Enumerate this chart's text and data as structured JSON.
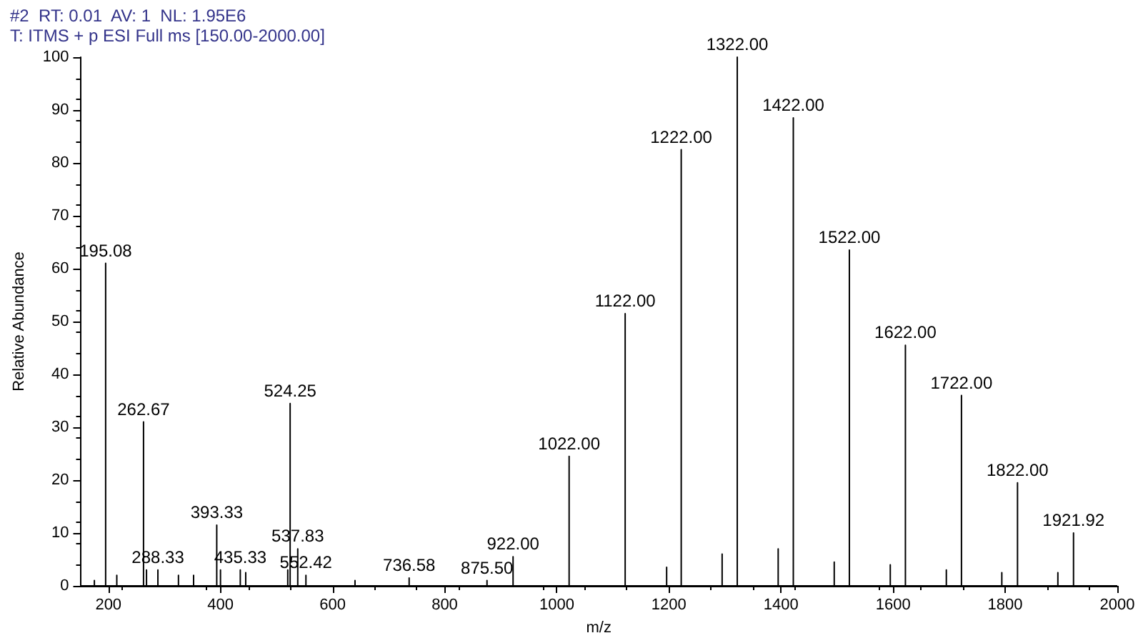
{
  "chart_data": {
    "type": "line",
    "title": "#2  RT: 0.01  AV: 1  NL: 1.95E6",
    "subtitle": "T: ITMS + p ESI Full ms [150.00-2000.00]",
    "xlabel": "m/z",
    "ylabel": "Relative Abundance",
    "xlim": [
      150,
      2000
    ],
    "xticks": [
      200,
      400,
      600,
      800,
      1000,
      1200,
      1400,
      1600,
      1800,
      2000
    ],
    "ylim": [
      0,
      100
    ],
    "yticks": [
      0,
      10,
      20,
      30,
      40,
      50,
      60,
      70,
      80,
      90,
      100
    ],
    "grid": false,
    "marker": "none",
    "line_style": "solid",
    "series": [
      {
        "color": "#000000",
        "x": [
          150,
          175,
          175,
          175,
          195.08,
          195.08,
          195.08,
          215,
          215,
          215,
          262.67,
          262.67,
          262.67,
          268,
          268,
          268,
          288.33,
          288.33,
          288.33,
          325,
          325,
          325,
          352,
          352,
          352,
          393.33,
          393.33,
          393.33,
          400,
          400,
          400,
          435.33,
          435.33,
          435.33,
          445,
          445,
          445,
          520,
          520,
          520,
          524.25,
          524.25,
          524.25,
          537.83,
          537.83,
          537.83,
          552.42,
          552.42,
          552.42,
          640,
          640,
          640,
          736.58,
          736.58,
          736.58,
          875.5,
          875.5,
          875.5,
          922,
          922,
          922,
          1022,
          1022,
          1022,
          1122,
          1122,
          1122,
          1196,
          1196,
          1196,
          1222,
          1222,
          1222,
          1295,
          1295,
          1295,
          1322,
          1322,
          1322,
          1395,
          1395,
          1395,
          1422,
          1422,
          1422,
          1495,
          1495,
          1495,
          1522,
          1522,
          1522,
          1595,
          1595,
          1595,
          1622,
          1622,
          1622,
          1695,
          1695,
          1695,
          1722,
          1722,
          1722,
          1794,
          1794,
          1794,
          1822,
          1822,
          1822,
          1894,
          1894,
          1894,
          1921.92,
          1921.92,
          1921.92,
          2000
        ],
        "values": [
          0,
          0,
          1,
          0,
          0,
          61,
          0,
          0,
          2,
          0,
          0,
          31,
          0,
          0,
          3,
          0,
          0,
          3,
          0,
          0,
          2,
          0,
          0,
          2,
          0,
          0,
          11.5,
          0,
          0,
          3,
          0,
          0,
          3,
          0,
          0,
          2.5,
          0,
          0,
          3,
          0,
          0,
          34.5,
          0,
          0,
          7,
          0,
          0,
          2,
          0,
          0,
          1,
          0,
          0,
          1.5,
          0,
          0,
          1,
          0,
          0,
          5.5,
          0,
          0,
          24.5,
          0,
          0,
          51.5,
          0,
          0,
          3.5,
          0,
          0,
          82.5,
          0,
          0,
          6,
          0,
          0,
          100,
          0,
          0,
          7,
          0,
          0,
          88.5,
          0,
          0,
          4.5,
          0,
          0,
          63.5,
          0,
          0,
          4,
          0,
          0,
          45.5,
          0,
          0,
          3,
          0,
          0,
          36,
          0,
          0,
          2.5,
          0,
          0,
          19.5,
          0,
          0,
          2.5,
          0,
          0,
          10,
          0,
          0
        ]
      }
    ],
    "annotations": [
      {
        "text": "195.08",
        "x": 195.08,
        "y": 61
      },
      {
        "text": "262.67",
        "x": 262.67,
        "y": 31
      },
      {
        "text": "288.33",
        "x": 288.33,
        "y": 3
      },
      {
        "text": "393.33",
        "x": 393.33,
        "y": 11.5
      },
      {
        "text": "435.33",
        "x": 435.33,
        "y": 3
      },
      {
        "text": "524.25",
        "x": 524.25,
        "y": 34.5
      },
      {
        "text": "537.83",
        "x": 537.83,
        "y": 7
      },
      {
        "text": "552.42",
        "x": 552.42,
        "y": 2
      },
      {
        "text": "736.58",
        "x": 736.58,
        "y": 1.5
      },
      {
        "text": "875.50",
        "x": 875.5,
        "y": 1
      },
      {
        "text": "922.00",
        "x": 922,
        "y": 5.5
      },
      {
        "text": "1022.00",
        "x": 1022,
        "y": 24.5
      },
      {
        "text": "1122.00",
        "x": 1122,
        "y": 51.5
      },
      {
        "text": "1222.00",
        "x": 1222,
        "y": 82.5
      },
      {
        "text": "1322.00",
        "x": 1322,
        "y": 100
      },
      {
        "text": "1422.00",
        "x": 1422,
        "y": 88.5
      },
      {
        "text": "1522.00",
        "x": 1522,
        "y": 63.5
      },
      {
        "text": "1622.00",
        "x": 1622,
        "y": 45.5
      },
      {
        "text": "1722.00",
        "x": 1722,
        "y": 36
      },
      {
        "text": "1822.00",
        "x": 1822,
        "y": 19.5
      },
      {
        "text": "1921.92",
        "x": 1921.92,
        "y": 10
      }
    ]
  }
}
